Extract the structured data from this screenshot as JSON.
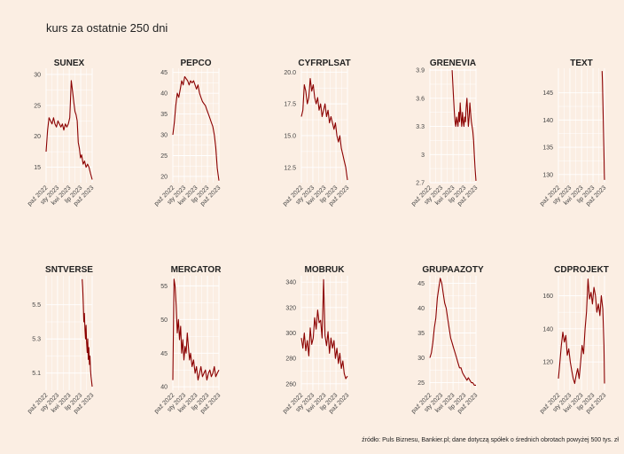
{
  "title": "kurs za ostatnie 250 dni",
  "caption": "źródło: Puls Biznesu, Bankier.pl; dane dotyczą spółek o średnich obrotach powyżej 500 tys. zł",
  "colors": {
    "background": "#fbeee3",
    "line": "#8b0000",
    "grid": "#ffffff"
  },
  "chart_data": [
    {
      "type": "line",
      "title": "SUNEX",
      "x_ticks": [
        "paź 2022",
        "sty 2023",
        "kwi 2023",
        "lip 2023",
        "paź 2023"
      ],
      "y_ticks": [
        15,
        20,
        25,
        30
      ],
      "ylim": [
        12.5,
        31
      ],
      "series": [
        {
          "x": [
            0,
            8,
            16,
            24,
            32,
            40,
            48,
            56,
            64,
            72,
            80,
            88,
            96,
            104,
            112,
            120,
            128,
            136,
            144,
            150,
            156,
            162,
            168,
            174,
            180,
            186,
            192,
            200,
            208,
            216,
            224,
            232,
            240,
            249
          ],
          "values": [
            17.5,
            21,
            23,
            22.5,
            22,
            23,
            22,
            21.5,
            22.5,
            22,
            21.5,
            22,
            21,
            22,
            21.5,
            22,
            23,
            29,
            27,
            25.5,
            24,
            23.5,
            22.5,
            19,
            18,
            16.5,
            17,
            15.5,
            16,
            15,
            15.5,
            15,
            14,
            13
          ]
        }
      ]
    },
    {
      "type": "line",
      "title": "PEPCO",
      "x_ticks": [
        "paź 2022",
        "sty 2023",
        "kwi 2023",
        "lip 2023",
        "paź 2023"
      ],
      "y_ticks": [
        20,
        25,
        30,
        35,
        40,
        45
      ],
      "ylim": [
        18.5,
        46
      ],
      "series": [
        {
          "x": [
            0,
            8,
            16,
            24,
            32,
            40,
            48,
            56,
            64,
            72,
            80,
            88,
            96,
            104,
            112,
            120,
            128,
            136,
            144,
            152,
            160,
            168,
            176,
            184,
            192,
            200,
            208,
            216,
            224,
            232,
            240,
            249
          ],
          "values": [
            30,
            33,
            37,
            40,
            39,
            41,
            43,
            42,
            44,
            43.5,
            43,
            42,
            43,
            42.5,
            43,
            42,
            41,
            42,
            40,
            39,
            38,
            37.5,
            37,
            36,
            35,
            34,
            33,
            32,
            30,
            27,
            22,
            19
          ]
        }
      ]
    },
    {
      "type": "line",
      "title": "CYFRPLSAT",
      "x_ticks": [
        "paź 2022",
        "sty 2023",
        "kwi 2023",
        "lip 2023",
        "paź 2023"
      ],
      "y_ticks": [
        12.5,
        15.0,
        17.5,
        20.0
      ],
      "ylim": [
        11.3,
        20.3
      ],
      "series": [
        {
          "x": [
            0,
            8,
            16,
            24,
            32,
            40,
            48,
            56,
            64,
            72,
            80,
            88,
            96,
            104,
            112,
            120,
            128,
            136,
            144,
            152,
            160,
            168,
            176,
            184,
            192,
            200,
            208,
            216,
            224,
            232,
            240,
            249
          ],
          "values": [
            16.5,
            17,
            19,
            18.5,
            17.5,
            18,
            19.5,
            18.5,
            19,
            18,
            17.5,
            18,
            17,
            17.5,
            16.5,
            17,
            17.5,
            16.5,
            17,
            16,
            16.5,
            16,
            15.5,
            16,
            15,
            14.5,
            15,
            14,
            13.5,
            13,
            12.5,
            11.5
          ]
        }
      ]
    },
    {
      "type": "line",
      "title": "GRENEVIA",
      "x_ticks": [
        "paź 2022",
        "sty 2023",
        "kwi 2023",
        "lip 2023",
        "paź 2023"
      ],
      "y_ticks": [
        2.7,
        3.0,
        3.3,
        3.6,
        3.9
      ],
      "ylim": [
        2.7,
        3.92
      ],
      "series": [
        {
          "x": [
            120,
            124,
            128,
            132,
            136,
            140,
            144,
            148,
            152,
            156,
            160,
            164,
            168,
            172,
            176,
            180,
            184,
            188,
            192,
            196,
            200,
            204,
            208,
            212,
            216,
            220,
            224,
            228,
            232,
            236,
            240,
            244,
            249
          ],
          "values": [
            3.9,
            3.75,
            3.6,
            3.45,
            3.35,
            3.3,
            3.4,
            3.35,
            3.3,
            3.45,
            3.35,
            3.55,
            3.4,
            3.3,
            3.45,
            3.35,
            3.3,
            3.4,
            3.35,
            3.5,
            3.6,
            3.45,
            3.3,
            3.4,
            3.55,
            3.45,
            3.35,
            3.3,
            3.25,
            3.15,
            3.0,
            2.85,
            2.72
          ]
        }
      ]
    },
    {
      "type": "line",
      "title": "TEXT",
      "x_ticks": [
        "paź 2022",
        "sty 2023",
        "kwi 2023",
        "lip 2023",
        "paź 2023"
      ],
      "y_ticks": [
        130,
        135,
        140,
        145
      ],
      "ylim": [
        128.5,
        149.5
      ],
      "series": [
        {
          "x": [
            236,
            238,
            240,
            242,
            244,
            246,
            248,
            249
          ],
          "values": [
            149,
            147,
            144,
            141,
            137,
            134,
            130,
            129
          ]
        }
      ]
    },
    {
      "type": "line",
      "title": "SNTVERSE",
      "x_ticks": [
        "paź 2022",
        "sty 2023",
        "kwi 2023",
        "lip 2023",
        "paź 2023"
      ],
      "y_ticks": [
        5.1,
        5.3,
        5.5
      ],
      "ylim": [
        5.0,
        5.67
      ],
      "series": [
        {
          "x": [
            195,
            198,
            201,
            204,
            207,
            210,
            213,
            216,
            219,
            222,
            225,
            228,
            231,
            234,
            237,
            240,
            243,
            246,
            249
          ],
          "values": [
            5.65,
            5.6,
            5.5,
            5.4,
            5.45,
            5.35,
            5.3,
            5.38,
            5.28,
            5.22,
            5.3,
            5.18,
            5.25,
            5.15,
            5.2,
            5.12,
            5.08,
            5.05,
            5.02
          ]
        }
      ]
    },
    {
      "type": "line",
      "title": "MERCATOR",
      "x_ticks": [
        "paź 2022",
        "sty 2023",
        "kwi 2023",
        "lip 2023",
        "paź 2023"
      ],
      "y_ticks": [
        40,
        45,
        50,
        55
      ],
      "ylim": [
        39.5,
        56.5
      ],
      "series": [
        {
          "x": [
            0,
            6,
            12,
            18,
            24,
            30,
            36,
            42,
            48,
            54,
            60,
            66,
            72,
            78,
            84,
            90,
            96,
            104,
            112,
            120,
            128,
            136,
            144,
            152,
            160,
            168,
            176,
            184,
            192,
            200,
            208,
            216,
            224,
            232,
            240,
            249
          ],
          "values": [
            41,
            56,
            55,
            52,
            48,
            50,
            47,
            49,
            45,
            47,
            44,
            46,
            45,
            48,
            46,
            44,
            45,
            43,
            44,
            42,
            43,
            41,
            42,
            43,
            41.5,
            42,
            42.5,
            41,
            42,
            42.5,
            41.5,
            42,
            43,
            41.5,
            42,
            42.5
          ]
        }
      ]
    },
    {
      "type": "line",
      "title": "MOBRUK",
      "x_ticks": [
        "paź 2022",
        "sty 2023",
        "kwi 2023",
        "lip 2023",
        "paź 2023"
      ],
      "y_ticks": [
        260,
        280,
        300,
        320,
        340
      ],
      "ylim": [
        255,
        345
      ],
      "series": [
        {
          "x": [
            0,
            8,
            16,
            24,
            32,
            40,
            48,
            56,
            64,
            72,
            80,
            88,
            96,
            104,
            112,
            120,
            128,
            136,
            144,
            152,
            160,
            168,
            176,
            184,
            192,
            200,
            208,
            216,
            224,
            232,
            240,
            249
          ],
          "values": [
            296,
            288,
            300,
            286,
            294,
            282,
            304,
            291,
            296,
            312,
            303,
            318,
            308,
            310,
            296,
            342,
            298,
            290,
            301,
            284,
            296,
            288,
            294,
            280,
            288,
            276,
            284,
            272,
            278,
            268,
            264,
            266
          ]
        }
      ]
    },
    {
      "type": "line",
      "title": "GRUPAAZOTY",
      "x_ticks": [
        "paź 2022",
        "sty 2023",
        "kwi 2023",
        "lip 2023",
        "paź 2023"
      ],
      "y_ticks": [
        25,
        30,
        35,
        40,
        45
      ],
      "ylim": [
        23.5,
        46.5
      ],
      "series": [
        {
          "x": [
            0,
            8,
            16,
            24,
            32,
            40,
            48,
            56,
            64,
            72,
            80,
            88,
            96,
            104,
            112,
            120,
            128,
            136,
            144,
            152,
            160,
            168,
            176,
            184,
            192,
            200,
            208,
            216,
            224,
            232,
            240,
            249
          ],
          "values": [
            30,
            31,
            33,
            36,
            38,
            42,
            44,
            46,
            45,
            43,
            41,
            40,
            38,
            36,
            34,
            33,
            32,
            31,
            30,
            29,
            28,
            28,
            27,
            26.5,
            26,
            25.5,
            26,
            25.5,
            25,
            25,
            24.5,
            24.5
          ]
        }
      ]
    },
    {
      "type": "line",
      "title": "CDPROJEKT",
      "x_ticks": [
        "paź 2022",
        "sty 2023",
        "kwi 2023",
        "lip 2023",
        "paź 2023"
      ],
      "y_ticks": [
        120,
        140,
        160
      ],
      "ylim": [
        103,
        172
      ],
      "series": [
        {
          "x": [
            0,
            8,
            16,
            24,
            32,
            40,
            48,
            56,
            64,
            72,
            80,
            88,
            96,
            104,
            112,
            120,
            128,
            136,
            144,
            152,
            160,
            168,
            176,
            184,
            192,
            200,
            208,
            216,
            224,
            232,
            240,
            246,
            249
          ],
          "values": [
            110,
            120,
            130,
            138,
            132,
            136,
            124,
            128,
            120,
            115,
            110,
            107,
            112,
            116,
            110,
            120,
            130,
            125,
            140,
            150,
            170,
            158,
            162,
            155,
            165,
            160,
            150,
            155,
            148,
            160,
            152,
            130,
            107
          ]
        }
      ]
    }
  ]
}
